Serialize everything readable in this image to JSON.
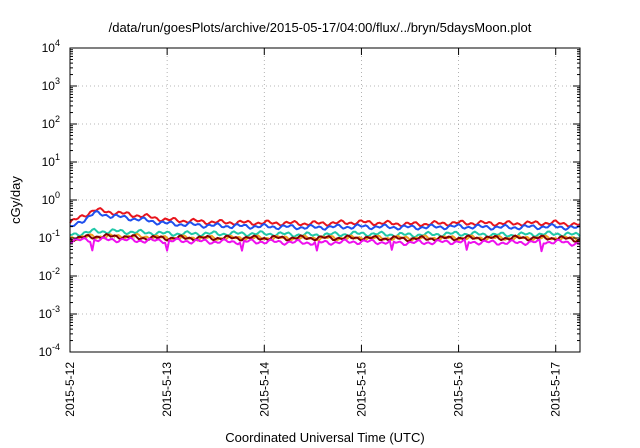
{
  "title": "/data/run/goesPlots/archive/2015-05-17/04:00/flux/../bryn/5daysMoon.plot",
  "chart_data": {
    "type": "line",
    "title": "/data/run/goesPlots/archive/2015-05-17/04:00/flux/../bryn/5daysMoon.plot",
    "xlabel": "Coordinated Universal Time (UTC)",
    "ylabel": "cGy/day",
    "y_scale": "log",
    "ylim": [
      0.0001,
      10000
    ],
    "y_tick_labels": [
      {
        "base": "10",
        "exp": "-4"
      },
      {
        "base": "10",
        "exp": "-3"
      },
      {
        "base": "10",
        "exp": "-2"
      },
      {
        "base": "10",
        "exp": "-1"
      },
      {
        "base": "10",
        "exp": "0"
      },
      {
        "base": "10",
        "exp": "1"
      },
      {
        "base": "10",
        "exp": "2"
      },
      {
        "base": "10",
        "exp": "3"
      },
      {
        "base": "10",
        "exp": "4"
      }
    ],
    "x_tick_labels": [
      "2015-5-12",
      "2015-5-13",
      "2015-5-14",
      "2015-5-15",
      "2015-5-16",
      "2015-5-17"
    ],
    "xlim": [
      "2015-05-12 00:00",
      "2015-05-17 06:00"
    ],
    "grid": true,
    "legend": "none",
    "x": [
      "2015-05-12 00:00",
      "2015-05-12 06:00",
      "2015-05-12 12:00",
      "2015-05-12 18:00",
      "2015-05-13 00:00",
      "2015-05-13 12:00",
      "2015-05-14 00:00",
      "2015-05-14 12:00",
      "2015-05-15 00:00",
      "2015-05-15 12:00",
      "2015-05-16 00:00",
      "2015-05-16 12:00",
      "2015-05-17 00:00",
      "2015-05-17 06:00"
    ],
    "series": [
      {
        "color": "#e8141c",
        "values": [
          0.25,
          0.55,
          0.45,
          0.38,
          0.3,
          0.26,
          0.25,
          0.24,
          0.26,
          0.23,
          0.25,
          0.24,
          0.25,
          0.22
        ]
      },
      {
        "color": "#2050ee",
        "values": [
          0.18,
          0.45,
          0.36,
          0.3,
          0.24,
          0.21,
          0.2,
          0.19,
          0.2,
          0.19,
          0.2,
          0.19,
          0.2,
          0.18
        ]
      },
      {
        "color": "#20c8a8",
        "values": [
          0.12,
          0.15,
          0.15,
          0.14,
          0.13,
          0.13,
          0.13,
          0.12,
          0.13,
          0.12,
          0.13,
          0.12,
          0.13,
          0.12
        ]
      },
      {
        "color": "#f0a020",
        "values": [
          0.1,
          0.11,
          0.11,
          0.11,
          0.1,
          0.1,
          0.1,
          0.1,
          0.1,
          0.1,
          0.1,
          0.1,
          0.1,
          0.095
        ]
      },
      {
        "color": "#800000",
        "values": [
          0.095,
          0.11,
          0.11,
          0.1,
          0.1,
          0.1,
          0.1,
          0.1,
          0.1,
          0.095,
          0.1,
          0.1,
          0.1,
          0.09
        ]
      },
      {
        "color": "#ee10ee",
        "values": [
          0.085,
          0.09,
          0.09,
          0.085,
          0.085,
          0.08,
          0.08,
          0.075,
          0.08,
          0.075,
          0.08,
          0.075,
          0.08,
          0.07
        ]
      }
    ]
  }
}
